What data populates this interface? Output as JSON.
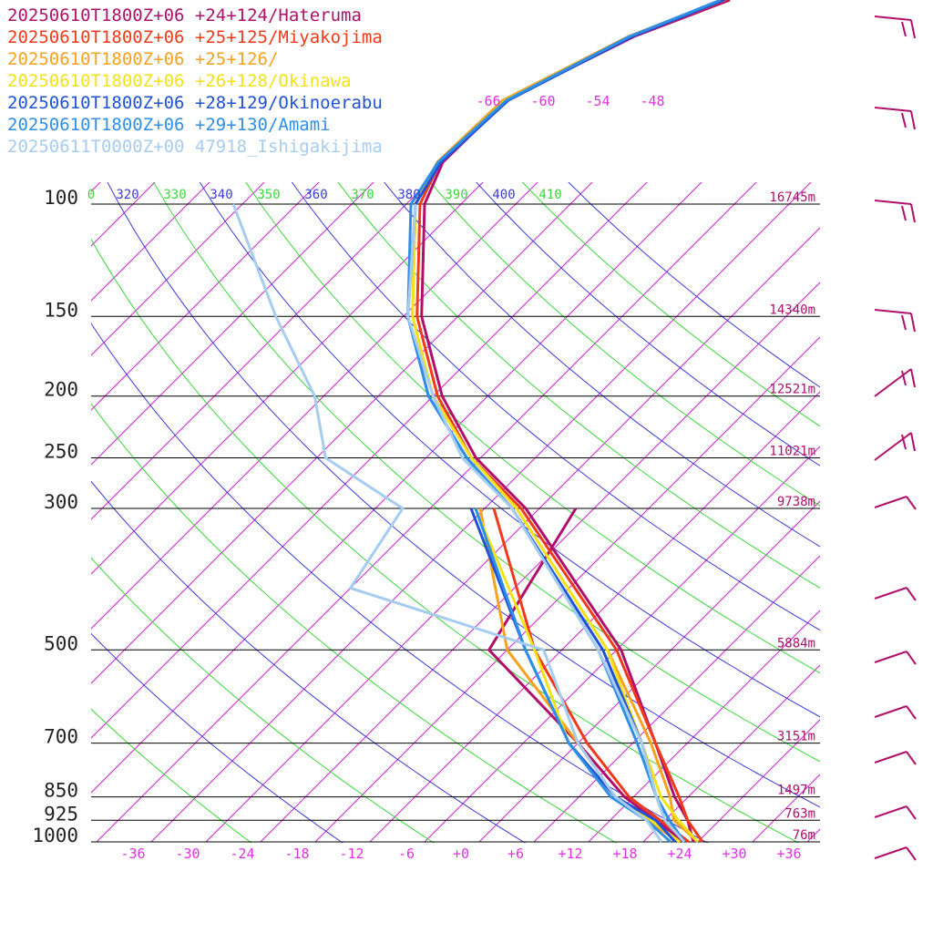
{
  "chart_data": {
    "type": "line",
    "title": "",
    "legend": [
      {
        "label": "20250610T1800Z+06 +24+124/Hateruma",
        "color": "#b0106a"
      },
      {
        "label": "20250610T1800Z+06 +25+125/Miyakojima",
        "color": "#f03a1a"
      },
      {
        "label": "20250610T1800Z+06 +25+126/",
        "color": "#f7a21e"
      },
      {
        "label": "20250610T1800Z+06 +26+128/Okinawa",
        "color": "#f2e21a"
      },
      {
        "label": "20250610T1800Z+06 +28+129/Okinoerabu",
        "color": "#1f52d6"
      },
      {
        "label": "20250610T1800Z+06 +29+130/Amami",
        "color": "#2f8fe6"
      },
      {
        "label": "20250611T0000Z+00 47918_Ishigakijima",
        "color": "#a6ccf0"
      }
    ],
    "pressure_levels": [
      {
        "p": 100,
        "label": "100",
        "height": "16745m"
      },
      {
        "p": 150,
        "label": "150",
        "height": "14340m"
      },
      {
        "p": 200,
        "label": "200",
        "height": "12521m"
      },
      {
        "p": 250,
        "label": "250",
        "height": "11021m"
      },
      {
        "p": 300,
        "label": "300",
        "height": "9738m"
      },
      {
        "p": 500,
        "label": "500",
        "height": "5884m"
      },
      {
        "p": 700,
        "label": "700",
        "height": "3151m"
      },
      {
        "p": 850,
        "label": "850",
        "height": "1497m"
      },
      {
        "p": 925,
        "label": "925",
        "height": "763m"
      },
      {
        "p": 1000,
        "label": "1000",
        "height": "76m"
      }
    ],
    "temperature_ticks": [
      "-36",
      "-30",
      "-24",
      "-18",
      "-12",
      "-6",
      "+0",
      "+6",
      "+12",
      "+18",
      "+24",
      "+30",
      "+36"
    ],
    "top_isotherm_labels": [
      "-66",
      "-60",
      "-54",
      "-48"
    ],
    "theta_labels": [
      "0",
      "320",
      "330",
      "340",
      "350",
      "360",
      "370",
      "380",
      "390",
      "400",
      "410"
    ],
    "xlim": [
      -40,
      40
    ],
    "ylim": [
      1000,
      100
    ],
    "series": [
      {
        "name": "20250610T1800Z+06 +24+124/Hateruma",
        "temperature": [
          [
            1000,
            25.5
          ],
          [
            925,
            22.5
          ],
          [
            850,
            18.5
          ],
          [
            700,
            10.5
          ],
          [
            500,
            -3.5
          ],
          [
            300,
            -29.5
          ],
          [
            250,
            -40.5
          ],
          [
            200,
            -51
          ],
          [
            150,
            -62
          ],
          [
            100,
            -74
          ]
        ],
        "dewpoint": [
          [
            1000,
            24.5
          ],
          [
            925,
            19
          ],
          [
            850,
            13
          ],
          [
            700,
            2
          ],
          [
            500,
            -18
          ],
          [
            300,
            -24
          ]
        ]
      },
      {
        "name": "20250610T1800Z+06 +25+125/Miyakojima",
        "temperature": [
          [
            1000,
            26.5
          ],
          [
            925,
            22.5
          ],
          [
            850,
            19
          ],
          [
            700,
            10.5
          ],
          [
            500,
            -4
          ],
          [
            300,
            -30
          ],
          [
            250,
            -41
          ],
          [
            200,
            -51.5
          ],
          [
            150,
            -62.5
          ],
          [
            100,
            -74.5
          ]
        ],
        "dewpoint": [
          [
            1000,
            25
          ],
          [
            925,
            19.5
          ],
          [
            850,
            13.5
          ],
          [
            700,
            3
          ],
          [
            500,
            -13
          ],
          [
            300,
            -33
          ]
        ]
      },
      {
        "name": "20250610T1800Z+06 +25+126/",
        "temperature": [
          [
            1000,
            26
          ],
          [
            925,
            21
          ],
          [
            850,
            18
          ],
          [
            700,
            10
          ],
          [
            500,
            -5
          ],
          [
            300,
            -30.5
          ],
          [
            250,
            -41
          ],
          [
            200,
            -52
          ],
          [
            150,
            -63
          ],
          [
            100,
            -75
          ]
        ],
        "dewpoint": [
          [
            1000,
            24
          ],
          [
            925,
            18
          ],
          [
            850,
            12
          ],
          [
            700,
            2
          ],
          [
            500,
            -16
          ],
          [
            300,
            -34.5
          ]
        ]
      },
      {
        "name": "20250610T1800Z+06 +26+128/Okinawa",
        "temperature": [
          [
            1000,
            26
          ],
          [
            925,
            21.5
          ],
          [
            850,
            17
          ],
          [
            700,
            9
          ],
          [
            500,
            -5
          ],
          [
            300,
            -30.5
          ],
          [
            250,
            -41
          ],
          [
            200,
            -52
          ],
          [
            150,
            -63
          ],
          [
            100,
            -75
          ]
        ],
        "dewpoint": [
          [
            1000,
            24
          ],
          [
            925,
            18.5
          ],
          [
            850,
            12
          ],
          [
            700,
            1
          ],
          [
            500,
            -13
          ],
          [
            300,
            -35
          ]
        ]
      },
      {
        "name": "20250610T1800Z+06 +28+129/Okinoerabu",
        "temperature": [
          [
            1000,
            24.5
          ],
          [
            925,
            20.5
          ],
          [
            850,
            16.5
          ],
          [
            700,
            9
          ],
          [
            500,
            -5.5
          ],
          [
            300,
            -31
          ],
          [
            250,
            -41.5
          ],
          [
            200,
            -52.5
          ],
          [
            150,
            -63.5
          ],
          [
            100,
            -75
          ]
        ],
        "dewpoint": [
          [
            1000,
            23.5
          ],
          [
            925,
            19
          ],
          [
            850,
            12
          ],
          [
            700,
            1
          ],
          [
            500,
            -14
          ],
          [
            300,
            -35.5
          ]
        ]
      },
      {
        "name": "20250610T1800Z+06 +29+130/Amami",
        "temperature": [
          [
            1000,
            24.5
          ],
          [
            925,
            20.5
          ],
          [
            850,
            16.5
          ],
          [
            700,
            8.5
          ],
          [
            500,
            -6
          ],
          [
            300,
            -31
          ],
          [
            250,
            -41.5
          ],
          [
            200,
            -52.5
          ],
          [
            150,
            -63.5
          ],
          [
            100,
            -75.5
          ]
        ],
        "dewpoint": [
          [
            1000,
            23
          ],
          [
            925,
            18
          ],
          [
            850,
            11.5
          ],
          [
            700,
            1
          ],
          [
            500,
            -14
          ],
          [
            300,
            -35
          ]
        ]
      },
      {
        "name": "20250611T0000Z+00 47918_Ishigakijima",
        "temperature": [
          [
            1000,
            24.5
          ],
          [
            925,
            20
          ],
          [
            850,
            16.5
          ],
          [
            700,
            9
          ],
          [
            500,
            -6
          ],
          [
            300,
            -31
          ],
          [
            250,
            -42
          ],
          [
            200,
            -52
          ],
          [
            150,
            -63.5
          ],
          [
            100,
            -75
          ]
        ],
        "dewpoint": [
          [
            1000,
            22
          ],
          [
            925,
            18
          ],
          [
            850,
            12
          ],
          [
            700,
            2
          ],
          [
            500,
            -12
          ],
          [
            400,
            -40
          ],
          [
            300,
            -43
          ],
          [
            250,
            -57
          ],
          [
            200,
            -65
          ],
          [
            150,
            -78
          ],
          [
            100,
            -95
          ]
        ]
      }
    ],
    "grid": true
  }
}
